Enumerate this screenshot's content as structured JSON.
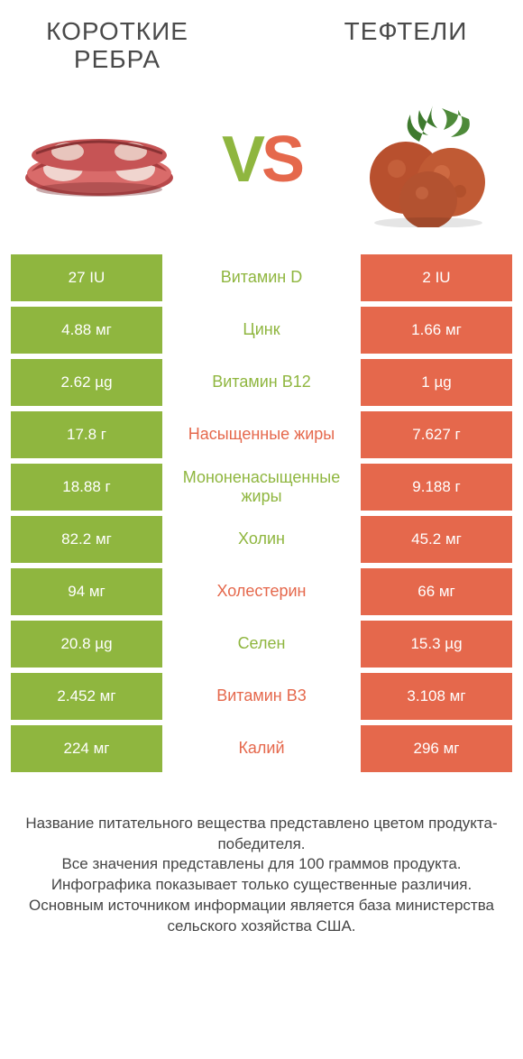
{
  "colors": {
    "green": "#8fb63f",
    "orange": "#e5684c",
    "text": "#4a4a4a",
    "background": "#ffffff"
  },
  "typography": {
    "title_fontsize": 28,
    "vs_fontsize": 72,
    "cell_fontsize": 17,
    "label_fontsize": 18,
    "footer_fontsize": 17
  },
  "header": {
    "left_title": "КОРОТКИЕ РЕБРА",
    "right_title": "ТЕФТЕЛИ",
    "vs_v": "V",
    "vs_s": "S"
  },
  "rows": [
    {
      "left": "27 IU",
      "label": "Витамин D",
      "right": "2 IU",
      "winner": "green"
    },
    {
      "left": "4.88 мг",
      "label": "Цинк",
      "right": "1.66 мг",
      "winner": "green"
    },
    {
      "left": "2.62 µg",
      "label": "Витамин B12",
      "right": "1 µg",
      "winner": "green"
    },
    {
      "left": "17.8 г",
      "label": "Насыщенные жиры",
      "right": "7.627 г",
      "winner": "orange"
    },
    {
      "left": "18.88 г",
      "label": "Мононенасыщенные жиры",
      "right": "9.188 г",
      "winner": "green"
    },
    {
      "left": "82.2 мг",
      "label": "Холин",
      "right": "45.2 мг",
      "winner": "green"
    },
    {
      "left": "94 мг",
      "label": "Холестерин",
      "right": "66 мг",
      "winner": "orange"
    },
    {
      "left": "20.8 µg",
      "label": "Селен",
      "right": "15.3 µg",
      "winner": "green"
    },
    {
      "left": "2.452 мг",
      "label": "Витамин B3",
      "right": "3.108 мг",
      "winner": "orange"
    },
    {
      "left": "224 мг",
      "label": "Калий",
      "right": "296 мг",
      "winner": "orange"
    }
  ],
  "footer": {
    "line1": "Название питательного вещества представлено цветом продукта-победителя.",
    "line2": "Все значения представлены для 100 граммов продукта.",
    "line3": "Инфографика показывает только существенные различия.",
    "line4": "Основным источником информации является база министерства сельского хозяйства США."
  }
}
